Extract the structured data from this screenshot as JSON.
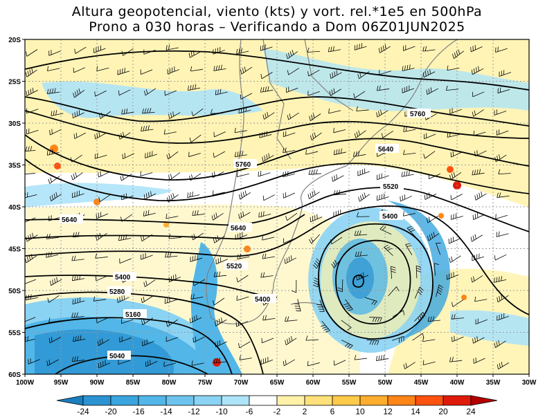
{
  "title": {
    "line1": "Altura geopotencial, viento (kts) y vort. rel.*1e5 en 500hPa",
    "line2": "Prono a 030 horas – Verificando a Dom 06Z01JUN2025"
  },
  "axes": {
    "lon_labels": [
      "100W",
      "95W",
      "90W",
      "85W",
      "80W",
      "75W",
      "70W",
      "65W",
      "60W",
      "55W",
      "50W",
      "45W",
      "40W",
      "35W",
      "30W"
    ],
    "lat_labels": [
      "20S",
      "25S",
      "30S",
      "35S",
      "40S",
      "45S",
      "50S",
      "55S",
      "60S"
    ],
    "lon_range": [
      -100,
      -30
    ],
    "lat_range": [
      -20,
      -60
    ],
    "grid": true
  },
  "contours": [
    {
      "value": "5760",
      "label": "5760"
    },
    {
      "value": "5760",
      "label": "5760"
    },
    {
      "value": "5640",
      "label": "5640"
    },
    {
      "value": "5640",
      "label": "5640"
    },
    {
      "value": "5640",
      "label": "5640"
    },
    {
      "value": "5520",
      "label": "5520"
    },
    {
      "value": "5520",
      "label": "5520"
    },
    {
      "value": "5400",
      "label": "5400"
    },
    {
      "value": "5400",
      "label": "5400"
    },
    {
      "value": "5400",
      "label": "5400"
    },
    {
      "value": "5280",
      "label": "5280"
    },
    {
      "value": "5160",
      "label": "5160"
    },
    {
      "value": "5040",
      "label": "5040"
    }
  ],
  "colorbar": {
    "labels": [
      "-24",
      "-20",
      "-16",
      "-14",
      "-12",
      "-10",
      "-6",
      "-2",
      "2",
      "6",
      "10",
      "12",
      "14",
      "20",
      "24"
    ],
    "colors": [
      "#1a7ec0",
      "#2b93d1",
      "#3aa5de",
      "#52b6e8",
      "#6cc4ee",
      "#8ad3f3",
      "#aee3f8",
      "#ffffff",
      "#fff2a8",
      "#ffe07a",
      "#ffc94a",
      "#ffad2e",
      "#ff8517",
      "#ff520e",
      "#e01a0a",
      "#b30000"
    ]
  }
}
